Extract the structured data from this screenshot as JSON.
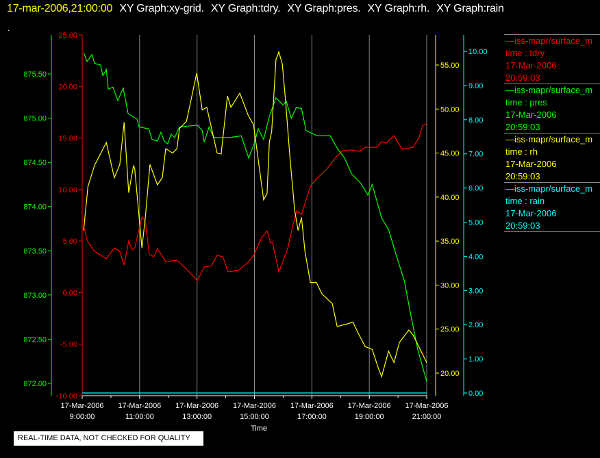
{
  "header": {
    "timestamp": "17-mar-2006,21:00:00",
    "graphs": [
      "XY Graph:xy-grid.",
      "XY Graph:tdry.",
      "XY Graph:pres.",
      "XY Graph:rh.",
      "XY Graph:rain"
    ],
    "dot": "."
  },
  "legend": [
    {
      "name": "iss-mapr/surface_m",
      "sub": "time : tdry",
      "date": "17-Mar-2006",
      "time": "20:59:03",
      "color": "#ff0000"
    },
    {
      "name": "iss-mapr/surface_m",
      "sub": "time : pres",
      "date": "17-Mar-2006",
      "time": "20:59:03",
      "color": "#00ff00"
    },
    {
      "name": "iss-mapr/surface_m",
      "sub": "time : rh",
      "date": "17-Mar-2006",
      "time": "20:59:03",
      "color": "#ffff00"
    },
    {
      "name": "iss-mapr/surface_m",
      "sub": "time : rain",
      "date": "17-Mar-2006",
      "time": "20:59:03",
      "color": "#00ffff"
    }
  ],
  "note": "REAL-TIME DATA, NOT CHECKED FOR QUALITY",
  "chart_data": {
    "type": "line",
    "xlabel": "Time",
    "xlim_hours": [
      9,
      21
    ],
    "x_ticks": [
      {
        "h": 9,
        "date": "17-Mar-2006",
        "time": "9:00:00"
      },
      {
        "h": 11,
        "date": "17-Mar-2006",
        "time": "11:00:00"
      },
      {
        "h": 13,
        "date": "17-Mar-2006",
        "time": "13:00:00"
      },
      {
        "h": 15,
        "date": "17-Mar-2006",
        "time": "15:00:00"
      },
      {
        "h": 17,
        "date": "17-Mar-2006",
        "time": "17:00:00"
      },
      {
        "h": 19,
        "date": "17-Mar-2006",
        "time": "19:00:00"
      },
      {
        "h": 21,
        "date": "17-Mar-2006",
        "time": "21:00:00"
      }
    ],
    "grid": "vertical",
    "axes": [
      {
        "series": "pres",
        "color": "#00ff00",
        "ylim": [
          872.0,
          875.5
        ],
        "ticks": [
          "872.00",
          "872.50",
          "873.00",
          "873.50",
          "874.00",
          "874.50",
          "875.00",
          "875.50"
        ]
      },
      {
        "series": "tdry",
        "color": "#ff0000",
        "ylim": [
          -10,
          25
        ],
        "ticks": [
          "-10.00",
          "-5.00",
          "0.00",
          "5.00",
          "10.00",
          "15.00",
          "20.00",
          "25.00"
        ]
      },
      {
        "series": "rh",
        "color": "#ffff00",
        "ylim": [
          20,
          55
        ],
        "ticks": [
          "20.00",
          "25.00",
          "30.00",
          "35.00",
          "40.00",
          "45.00",
          "50.00",
          "55.00"
        ]
      },
      {
        "series": "rain",
        "color": "#00ffff",
        "ylim": [
          0,
          10
        ],
        "ticks": [
          "0.00",
          "1.00",
          "2.00",
          "3.00",
          "4.00",
          "5.00",
          "6.00",
          "7.00",
          "8.00",
          "9.00",
          "10.00"
        ]
      }
    ],
    "series": [
      {
        "name": "tdry",
        "color": "#ff0000",
        "points": [
          [
            9.05,
            6.47
          ],
          [
            9.19,
            4.94
          ],
          [
            9.43,
            4.01
          ],
          [
            9.84,
            3.28
          ],
          [
            10.12,
            4.34
          ],
          [
            10.31,
            4.0
          ],
          [
            10.46,
            2.68
          ],
          [
            10.62,
            5.0
          ],
          [
            10.74,
            4.14
          ],
          [
            10.83,
            4.34
          ],
          [
            11.08,
            7.33
          ],
          [
            11.2,
            6.94
          ],
          [
            11.34,
            3.68
          ],
          [
            11.5,
            3.5
          ],
          [
            11.62,
            4.28
          ],
          [
            11.91,
            3.01
          ],
          [
            12.3,
            3.14
          ],
          [
            12.63,
            2.28
          ],
          [
            13.01,
            1.16
          ],
          [
            13.25,
            2.48
          ],
          [
            13.5,
            2.6
          ],
          [
            13.7,
            3.61
          ],
          [
            13.9,
            3.48
          ],
          [
            14.08,
            2.02
          ],
          [
            14.44,
            2.15
          ],
          [
            14.78,
            2.95
          ],
          [
            14.97,
            3.61
          ],
          [
            15.25,
            5.34
          ],
          [
            15.44,
            6.0
          ],
          [
            15.56,
            4.81
          ],
          [
            15.63,
            4.88
          ],
          [
            15.85,
            2.02
          ],
          [
            16.16,
            4.28
          ],
          [
            16.35,
            6.67
          ],
          [
            16.47,
            7.93
          ],
          [
            16.64,
            7.6
          ],
          [
            16.95,
            10.32
          ],
          [
            17.19,
            11.12
          ],
          [
            17.52,
            11.98
          ],
          [
            17.83,
            13.11
          ],
          [
            18.07,
            13.77
          ],
          [
            18.38,
            13.84
          ],
          [
            18.66,
            13.7
          ],
          [
            18.86,
            14.1
          ],
          [
            19.26,
            14.1
          ],
          [
            19.43,
            14.64
          ],
          [
            19.59,
            14.5
          ],
          [
            19.86,
            15.23
          ],
          [
            20.14,
            13.9
          ],
          [
            20.53,
            14.1
          ],
          [
            20.74,
            15.1
          ],
          [
            20.86,
            16.2
          ],
          [
            21.0,
            16.4
          ]
        ]
      },
      {
        "name": "pres",
        "color": "#00ff00",
        "points": [
          [
            9.05,
            875.74
          ],
          [
            9.17,
            875.64
          ],
          [
            9.34,
            875.72
          ],
          [
            9.43,
            875.62
          ],
          [
            9.64,
            875.6
          ],
          [
            9.72,
            875.48
          ],
          [
            9.84,
            875.55
          ],
          [
            9.91,
            875.33
          ],
          [
            10.07,
            875.35
          ],
          [
            10.24,
            875.2
          ],
          [
            10.43,
            875.34
          ],
          [
            10.6,
            875.05
          ],
          [
            10.91,
            874.99
          ],
          [
            10.98,
            874.9
          ],
          [
            11.32,
            874.88
          ],
          [
            11.43,
            874.76
          ],
          [
            11.62,
            874.74
          ],
          [
            11.74,
            874.84
          ],
          [
            11.86,
            874.74
          ],
          [
            11.98,
            874.71
          ],
          [
            12.1,
            874.82
          ],
          [
            12.22,
            874.78
          ],
          [
            12.39,
            874.9
          ],
          [
            12.7,
            874.91
          ],
          [
            13.01,
            874.92
          ],
          [
            13.18,
            874.86
          ],
          [
            13.25,
            874.73
          ],
          [
            13.42,
            874.9
          ],
          [
            13.58,
            874.78
          ],
          [
            14.13,
            874.78
          ],
          [
            14.54,
            874.8
          ],
          [
            14.8,
            874.55
          ],
          [
            15.01,
            874.73
          ],
          [
            15.13,
            874.88
          ],
          [
            15.32,
            874.76
          ],
          [
            15.52,
            875.02
          ],
          [
            15.75,
            875.23
          ],
          [
            15.99,
            875.15
          ],
          [
            16.11,
            875.19
          ],
          [
            16.28,
            875.0
          ],
          [
            16.46,
            875.12
          ],
          [
            16.64,
            875.11
          ],
          [
            16.8,
            874.86
          ],
          [
            17.19,
            874.8
          ],
          [
            17.64,
            874.8
          ],
          [
            17.9,
            874.65
          ],
          [
            18.14,
            874.55
          ],
          [
            18.38,
            874.37
          ],
          [
            18.71,
            874.26
          ],
          [
            18.95,
            874.13
          ],
          [
            19.1,
            874.25
          ],
          [
            19.43,
            873.87
          ],
          [
            19.67,
            873.74
          ],
          [
            19.91,
            873.48
          ],
          [
            20.22,
            873.16
          ],
          [
            20.46,
            872.75
          ],
          [
            20.69,
            872.38
          ],
          [
            21.0,
            872.02
          ]
        ]
      },
      {
        "name": "rh",
        "color": "#ffff00",
        "points": [
          [
            9.05,
            36.2
          ],
          [
            9.2,
            41.2
          ],
          [
            9.43,
            43.6
          ],
          [
            9.84,
            46.2
          ],
          [
            10.12,
            42.2
          ],
          [
            10.31,
            43.7
          ],
          [
            10.46,
            48.5
          ],
          [
            10.62,
            40.5
          ],
          [
            10.79,
            43.6
          ],
          [
            10.83,
            43.2
          ],
          [
            11.08,
            34.2
          ],
          [
            11.2,
            37.7
          ],
          [
            11.36,
            43.7
          ],
          [
            11.62,
            41.4
          ],
          [
            11.79,
            42.2
          ],
          [
            11.91,
            45.5
          ],
          [
            12.15,
            45.0
          ],
          [
            12.3,
            45.5
          ],
          [
            12.39,
            47.8
          ],
          [
            12.63,
            48.6
          ],
          [
            12.77,
            50.7
          ],
          [
            12.99,
            54.1
          ],
          [
            13.18,
            49.9
          ],
          [
            13.34,
            50.2
          ],
          [
            13.7,
            45.0
          ],
          [
            13.84,
            44.9
          ],
          [
            14.06,
            51.5
          ],
          [
            14.18,
            50.2
          ],
          [
            14.49,
            51.8
          ],
          [
            14.78,
            49.3
          ],
          [
            14.97,
            48.2
          ],
          [
            15.13,
            44.3
          ],
          [
            15.32,
            39.7
          ],
          [
            15.44,
            40.4
          ],
          [
            15.52,
            46.3
          ],
          [
            15.6,
            47.4
          ],
          [
            15.75,
            55.6
          ],
          [
            15.85,
            56.5
          ],
          [
            15.97,
            55.1
          ],
          [
            16.09,
            50.7
          ],
          [
            16.23,
            44.7
          ],
          [
            16.4,
            38.5
          ],
          [
            16.52,
            36.2
          ],
          [
            16.64,
            37.7
          ],
          [
            16.76,
            33.8
          ],
          [
            16.95,
            30.3
          ],
          [
            17.16,
            30.3
          ],
          [
            17.35,
            29.0
          ],
          [
            17.71,
            27.9
          ],
          [
            17.88,
            25.3
          ],
          [
            18.24,
            25.6
          ],
          [
            18.43,
            25.8
          ],
          [
            18.62,
            24.5
          ],
          [
            18.86,
            23.0
          ],
          [
            19.1,
            22.7
          ],
          [
            19.31,
            20.6
          ],
          [
            19.43,
            19.6
          ],
          [
            19.67,
            22.5
          ],
          [
            19.86,
            21.2
          ],
          [
            20.05,
            23.5
          ],
          [
            20.38,
            24.9
          ],
          [
            20.53,
            24.3
          ],
          [
            20.77,
            22.7
          ],
          [
            21.0,
            21.2
          ]
        ]
      },
      {
        "name": "rain",
        "color": "#00ffff",
        "points": [
          [
            9.0,
            0.0
          ],
          [
            21.0,
            0.0
          ]
        ]
      }
    ]
  }
}
